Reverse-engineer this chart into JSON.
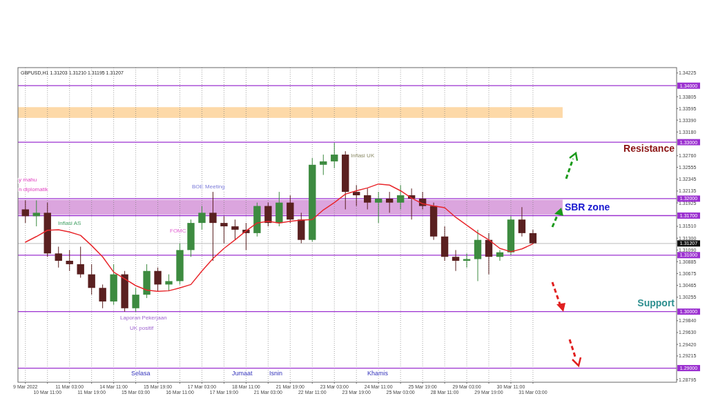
{
  "chart_data": {
    "type": "candlestick",
    "categories": [
      "9 Mar 2022",
      null,
      "10 Mar 11:00",
      null,
      "11 Mar 03:00",
      null,
      "11 Mar 19:00",
      null,
      "14 Mar 11:00",
      null,
      "15 Mar 03:00",
      null,
      "15 Mar 19:00",
      null,
      "16 Mar 11:00",
      null,
      "17 Mar 03:00",
      null,
      "17 Mar 19:00",
      null,
      "18 Mar 11:00",
      null,
      "21 Mar 03:00",
      null,
      "21 Mar 19:00",
      null,
      "22 Mar 11:00",
      null,
      "23 Mar 03:00",
      null,
      "23 Mar 19:00",
      null,
      "24 Mar 11:00",
      null,
      "25 Mar 03:00",
      null,
      "25 Mar 19:00",
      null,
      "28 Mar 11:00",
      null,
      "29 Mar 03:00",
      null,
      "29 Mar 19:00",
      null,
      "30 Mar 11:00",
      null,
      "31 Mar 03:00"
    ],
    "ohlc": [
      [
        1.3181,
        1.3197,
        1.3157,
        1.3169
      ],
      [
        1.3169,
        1.3197,
        1.3151,
        1.3175
      ],
      [
        1.3175,
        1.3193,
        1.3097,
        1.3103
      ],
      [
        1.3103,
        1.3115,
        1.3078,
        1.309
      ],
      [
        1.309,
        1.3109,
        1.3072,
        1.3084
      ],
      [
        1.3084,
        1.3115,
        1.306,
        1.3066
      ],
      [
        1.3066,
        1.3084,
        1.303,
        1.3042
      ],
      [
        1.3042,
        1.3048,
        1.3006,
        1.3018
      ],
      [
        1.3018,
        1.3084,
        1.3012,
        1.3066
      ],
      [
        1.3066,
        1.3072,
        1.3,
        1.3006
      ],
      [
        1.3006,
        1.3042,
        1.3,
        1.303
      ],
      [
        1.303,
        1.3084,
        1.3024,
        1.3072
      ],
      [
        1.3072,
        1.3078,
        1.3036,
        1.3048
      ],
      [
        1.3048,
        1.3066,
        1.3036,
        1.3054
      ],
      [
        1.3054,
        1.3121,
        1.3048,
        1.3109
      ],
      [
        1.3109,
        1.3163,
        1.3097,
        1.3157
      ],
      [
        1.3157,
        1.3187,
        1.3145,
        1.3175
      ],
      [
        1.3175,
        1.3212,
        1.309,
        1.3157
      ],
      [
        1.3157,
        1.3169,
        1.3121,
        1.3151
      ],
      [
        1.3151,
        1.3163,
        1.3127,
        1.3145
      ],
      [
        1.3145,
        1.3157,
        1.3109,
        1.3139
      ],
      [
        1.3139,
        1.3193,
        1.3133,
        1.3187
      ],
      [
        1.3187,
        1.3193,
        1.3151,
        1.3157
      ],
      [
        1.3157,
        1.3212,
        1.3151,
        1.3193
      ],
      [
        1.3193,
        1.3206,
        1.3157,
        1.3163
      ],
      [
        1.3163,
        1.3175,
        1.3121,
        1.3127
      ],
      [
        1.3127,
        1.3272,
        1.3124,
        1.326
      ],
      [
        1.326,
        1.3278,
        1.3242,
        1.3266
      ],
      [
        1.3266,
        1.3299,
        1.3254,
        1.3278
      ],
      [
        1.3278,
        1.3284,
        1.3181,
        1.3212
      ],
      [
        1.3212,
        1.3224,
        1.3187,
        1.3206
      ],
      [
        1.3206,
        1.3218,
        1.3181,
        1.3193
      ],
      [
        1.3193,
        1.3212,
        1.3157,
        1.32
      ],
      [
        1.32,
        1.3212,
        1.3175,
        1.3193
      ],
      [
        1.3193,
        1.3224,
        1.3181,
        1.3206
      ],
      [
        1.3206,
        1.3218,
        1.3163,
        1.32
      ],
      [
        1.32,
        1.3212,
        1.3181,
        1.3187
      ],
      [
        1.3187,
        1.3193,
        1.3127,
        1.3133
      ],
      [
        1.3133,
        1.3151,
        1.309,
        1.3097
      ],
      [
        1.3097,
        1.3109,
        1.3072,
        1.309
      ],
      [
        1.309,
        1.3103,
        1.3078,
        1.3093
      ],
      [
        1.3093,
        1.3145,
        1.3054,
        1.3127
      ],
      [
        1.3127,
        1.3139,
        1.3066,
        1.3097
      ],
      [
        1.3097,
        1.3109,
        1.309,
        1.3105
      ],
      [
        1.3105,
        1.3169,
        1.31,
        1.3163
      ],
      [
        1.3163,
        1.3185,
        1.3133,
        1.3139
      ],
      [
        1.3139,
        1.3145,
        1.312,
        1.3121
      ]
    ],
    "colors": [
      "#5a2020",
      "#3d8b40",
      "#5a2020",
      "#5a2020",
      "#5a2020",
      "#5a2020",
      "#5a2020",
      "#5a2020",
      "#3d8b40",
      "#5a2020",
      "#3d8b40",
      "#3d8b40",
      "#5a2020",
      "#3d8b40",
      "#3d8b40",
      "#3d8b40",
      "#3d8b40",
      "#5a2020",
      "#5a2020",
      "#5a2020",
      "#5a2020",
      "#3d8b40",
      "#5a2020",
      "#3d8b40",
      "#5a2020",
      "#5a2020",
      "#3d8b40",
      "#3d8b40",
      "#3d8b40",
      "#5a2020",
      "#5a2020",
      "#5a2020",
      "#3d8b40",
      "#5a2020",
      "#3d8b40",
      "#5a2020",
      "#5a2020",
      "#5a2020",
      "#5a2020",
      "#5a2020",
      "#3d8b40",
      "#3d8b40",
      "#5a2020",
      "#3d8b40",
      "#3d8b40",
      "#5a2020",
      "#5a2020"
    ],
    "series": [
      {
        "type": "line",
        "color": "#e8262b",
        "values": [
          1.3123,
          1.3133,
          1.3144,
          1.3145,
          1.3141,
          1.3135,
          1.3117,
          1.3097,
          1.307,
          1.3058,
          1.3046,
          1.3038,
          1.3036,
          1.3037,
          1.3042,
          1.3048,
          1.3072,
          1.3094,
          1.3112,
          1.3127,
          1.3143,
          1.3157,
          1.316,
          1.3157,
          1.316,
          1.3162,
          1.3163,
          1.318,
          1.3193,
          1.3208,
          1.3214,
          1.3219,
          1.3226,
          1.3224,
          1.3214,
          1.3201,
          1.3191,
          1.3187,
          1.3184,
          1.3167,
          1.3153,
          1.3139,
          1.3127,
          1.3112,
          1.3106,
          1.3111,
          1.312
        ]
      }
    ],
    "ylim": [
      1.2875,
      1.3432
    ],
    "yticks": [
      {
        "value": 1.28795,
        "label": "1.28795"
      },
      {
        "value": 1.29215,
        "label": "1.29215"
      },
      {
        "value": 1.2942,
        "label": "1.29420"
      },
      {
        "value": 1.2963,
        "label": "1.29630"
      },
      {
        "value": 1.2984,
        "label": "1.29840"
      },
      {
        "value": 1.30255,
        "label": "1.30255"
      },
      {
        "value": 1.30465,
        "label": "1.30465"
      },
      {
        "value": 1.30675,
        "label": "1.30675"
      },
      {
        "value": 1.30885,
        "label": "1.30885"
      },
      {
        "value": 1.3109,
        "label": "1.31090"
      },
      {
        "value": 1.313,
        "label": "1.31300"
      },
      {
        "value": 1.3151,
        "label": "1.31510"
      },
      {
        "value": 1.31925,
        "label": "1.31925"
      },
      {
        "value": 1.32135,
        "label": "1.32135"
      },
      {
        "value": 1.32345,
        "label": "1.32345"
      },
      {
        "value": 1.32555,
        "label": "1.32555"
      },
      {
        "value": 1.3276,
        "label": "1.32760"
      },
      {
        "value": 1.3318,
        "label": "1.33180"
      },
      {
        "value": 1.3339,
        "label": "1.33390"
      },
      {
        "value": 1.33595,
        "label": "1.33595"
      },
      {
        "value": 1.33805,
        "label": "1.33805"
      },
      {
        "value": 1.34225,
        "label": "1.34225"
      }
    ],
    "grid": "x",
    "ref_lines": [
      {
        "axis": "y",
        "value": 1.34,
        "label": "1.34000",
        "color": "#9b30d0"
      },
      {
        "axis": "y",
        "value": 1.33,
        "label": "1.33000",
        "color": "#9b30d0"
      },
      {
        "axis": "y",
        "value": 1.32,
        "label": "1.32000",
        "color": "#9b30d0"
      },
      {
        "axis": "y",
        "value": 1.317,
        "label": "1.31700",
        "color": "#9b30d0"
      },
      {
        "axis": "y",
        "value": 1.31207,
        "label": "1.31207",
        "color": "#c8c8c8"
      },
      {
        "axis": "y",
        "value": 1.31,
        "label": "1.31000",
        "color": "#9b30d0"
      },
      {
        "axis": "y",
        "value": 1.3,
        "label": "1.30000",
        "color": "#9b30d0"
      },
      {
        "axis": "y",
        "value": 1.29,
        "label": "1.29000",
        "color": "#9b30d0"
      }
    ],
    "bands": [
      {
        "axis": "y",
        "from": 1.3343,
        "to": 1.3362,
        "color": "#fdd9a8"
      },
      {
        "axis": "y",
        "from": 1.3172,
        "to": 1.3198,
        "label": "SBR zone",
        "color": "#dba5de"
      }
    ],
    "annotations": [
      "GBPUSD,H1 1.31203 1.31210 1.31195 1.31207",
      "y mahu",
      "n diplomatik",
      "Inflasi AS",
      "BOE Meeting",
      "FOMC",
      "Inflasi UK",
      "Laporan Pekerjaan",
      "UK positif",
      "Selasa",
      "Jumaat",
      "Isnin",
      "Khamis",
      "Resistance",
      "Support"
    ]
  }
}
